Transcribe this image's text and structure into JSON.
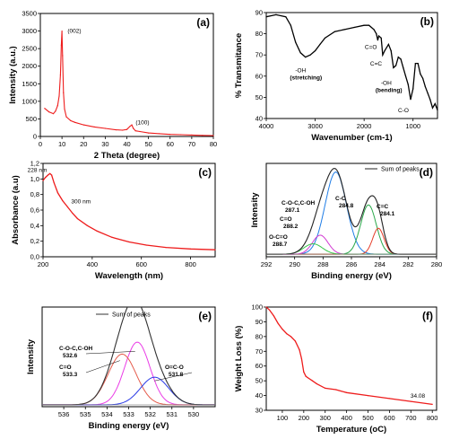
{
  "chart_data": [
    {
      "panel": "(a)",
      "type": "line",
      "xlabel": "2 Theta (degree)",
      "ylabel": "Intensity (a.u.)",
      "xlim": [
        0,
        80
      ],
      "ylim": [
        0,
        3500
      ],
      "xticks": [
        0,
        10,
        20,
        30,
        40,
        50,
        60,
        70,
        80
      ],
      "yticks": [
        0,
        500,
        1000,
        1500,
        2000,
        2500,
        3000,
        3500
      ],
      "color": "#ee1c1c",
      "annotations": [
        {
          "text": "(002)",
          "x": 10.5,
          "y": 3000
        },
        {
          "text": "(100)",
          "x": 42,
          "y": 400
        }
      ],
      "series": [
        {
          "x": [
            2,
            4,
            6,
            7,
            8,
            8.7,
            9.3,
            9.7,
            10,
            10.3,
            10.7,
            11.2,
            12,
            14,
            16,
            20,
            25,
            30,
            35,
            38,
            40,
            41.5,
            42.3,
            43,
            44,
            46,
            50,
            55,
            60,
            65,
            70,
            75,
            80
          ],
          "y": [
            800,
            700,
            650,
            720,
            880,
            1150,
            1750,
            2600,
            3000,
            2300,
            1250,
            780,
            560,
            450,
            400,
            330,
            270,
            230,
            190,
            180,
            200,
            290,
            330,
            230,
            160,
            140,
            100,
            80,
            60,
            50,
            40,
            30,
            25
          ]
        }
      ]
    },
    {
      "panel": "(b)",
      "type": "line",
      "xlabel": "Wavenumber (cm-1)",
      "ylabel": "% Transmitance",
      "xlim": [
        4000,
        500
      ],
      "ylim": [
        40,
        90
      ],
      "xticks": [
        4000,
        3000,
        2000,
        1000
      ],
      "yticks": [
        40,
        50,
        60,
        70,
        80,
        90
      ],
      "color": "#000000",
      "annotations": [
        {
          "text": "-OH",
          "sub": "(stretching)",
          "x": 3150,
          "y": 67
        },
        {
          "text": "C=O",
          "x": 1730,
          "y": 78
        },
        {
          "text": "C=C",
          "x": 1620,
          "y": 70
        },
        {
          "text": "-OH",
          "sub": "(bending)",
          "x": 1400,
          "y": 61
        },
        {
          "text": "C-O",
          "x": 1050,
          "y": 48
        }
      ],
      "series": [
        {
          "x": [
            4000,
            3800,
            3600,
            3500,
            3400,
            3300,
            3200,
            3100,
            3000,
            2900,
            2800,
            2600,
            2400,
            2200,
            2000,
            1900,
            1800,
            1750,
            1720,
            1700,
            1650,
            1620,
            1580,
            1500,
            1450,
            1400,
            1350,
            1300,
            1250,
            1200,
            1150,
            1100,
            1050,
            1000,
            950,
            900,
            850,
            800,
            750,
            700,
            650,
            600,
            550,
            500
          ],
          "y": [
            88,
            89,
            88,
            84,
            76,
            71,
            69,
            70,
            72,
            75,
            78,
            81,
            82,
            83,
            84,
            84,
            82,
            80,
            77,
            79,
            78,
            70,
            72,
            75,
            72,
            64,
            65,
            69,
            68,
            64,
            60,
            56,
            49,
            54,
            66,
            66,
            61,
            59,
            55,
            52,
            49,
            45,
            47,
            44
          ]
        }
      ]
    },
    {
      "panel": "(c)",
      "type": "line",
      "xlabel": "Wavelength (nm)",
      "ylabel": "Absorbance (a.u)",
      "xlim": [
        200,
        900
      ],
      "ylim": [
        0.0,
        1.2
      ],
      "xticks": [
        200,
        400,
        600,
        800
      ],
      "yticks": [
        0.0,
        0.2,
        0.4,
        0.6,
        0.8,
        1.0,
        1.2
      ],
      "color": "#ee1c1c",
      "annotations": [
        {
          "text": "228 nm",
          "x": 228,
          "y": 1.07
        },
        {
          "text": "300 nm",
          "x": 300,
          "y": 0.64
        }
      ],
      "series": [
        {
          "x": [
            200,
            210,
            220,
            228,
            235,
            245,
            260,
            280,
            300,
            320,
            340,
            380,
            420,
            480,
            550,
            620,
            700,
            800,
            900
          ],
          "y": [
            0.98,
            1.02,
            1.05,
            1.07,
            1.05,
            0.95,
            0.82,
            0.72,
            0.64,
            0.56,
            0.49,
            0.4,
            0.33,
            0.25,
            0.19,
            0.15,
            0.12,
            0.1,
            0.09
          ]
        }
      ]
    },
    {
      "panel": "(d)",
      "type": "line",
      "xlabel": "Binding energy (eV)",
      "ylabel": "Intensity",
      "xlim": [
        292,
        280
      ],
      "xticks": [
        292,
        290,
        288,
        286,
        284,
        282,
        280
      ],
      "legend": [
        "Sum of peaks"
      ],
      "legend_position": "top-right",
      "labels": [
        {
          "name": "C-O-C,C-OH",
          "value": "287.1"
        },
        {
          "name": "C-C",
          "value": "284.8"
        },
        {
          "name": "C=C",
          "value": "284.1"
        },
        {
          "name": "C=O",
          "value": "288.2"
        },
        {
          "name": "O-C=O",
          "value": "288.7"
        }
      ],
      "peaks": [
        {
          "center": 287.1,
          "height": 0.95,
          "width": 0.75,
          "color": "#1f7de6"
        },
        {
          "center": 284.8,
          "height": 0.57,
          "width": 0.55,
          "color": "#2aa84a"
        },
        {
          "center": 284.1,
          "height": 0.3,
          "width": 0.4,
          "color": "#e53a26"
        },
        {
          "center": 288.2,
          "height": 0.22,
          "width": 0.55,
          "color": "#d23ad2"
        },
        {
          "center": 288.7,
          "height": 0.12,
          "width": 0.65,
          "color": "#36c648"
        }
      ],
      "baseline": 0.03,
      "sum_color": "#222222"
    },
    {
      "panel": "(e)",
      "type": "line",
      "xlabel": "Binding energy (eV)",
      "ylabel": "Intensity",
      "xlim": [
        537,
        529
      ],
      "xticks": [
        536,
        535,
        534,
        533,
        532,
        531,
        530
      ],
      "legend": [
        "Sum of peaks"
      ],
      "legend_position": "top-right",
      "labels": [
        {
          "name": "C-O-C,C-OH",
          "value": "532.6"
        },
        {
          "name": "C=O",
          "value": "533.3"
        },
        {
          "name": "O=C-O",
          "value": "531.8"
        }
      ],
      "peaks": [
        {
          "center": 532.6,
          "height": 0.68,
          "width": 0.58,
          "color": "#ea3ce6"
        },
        {
          "center": 533.3,
          "height": 0.55,
          "width": 0.65,
          "color": "#e55a4a"
        },
        {
          "center": 531.8,
          "height": 0.3,
          "width": 0.65,
          "color": "#2a3ae6"
        }
      ],
      "baseline": 0.02,
      "sum_color": "#333333"
    },
    {
      "panel": "(f)",
      "type": "line",
      "xlabel": "Temperature (oC)",
      "ylabel": "Weight Loss (%)",
      "xlim": [
        25,
        820
      ],
      "ylim": [
        30,
        100
      ],
      "xticks": [
        100,
        200,
        300,
        400,
        500,
        600,
        700,
        800
      ],
      "yticks": [
        30,
        40,
        50,
        60,
        70,
        80,
        90,
        100
      ],
      "color": "#ee1c1c",
      "annotations": [
        {
          "text": "34.08",
          "x": 740,
          "y": 36
        }
      ],
      "series": [
        {
          "x": [
            25,
            40,
            60,
            80,
            100,
            120,
            140,
            160,
            180,
            190,
            200,
            210,
            220,
            240,
            260,
            300,
            350,
            400,
            500,
            600,
            700,
            800
          ],
          "y": [
            100,
            98,
            94,
            89,
            85,
            82,
            80,
            77,
            71,
            65,
            56,
            53,
            52,
            50,
            48,
            45,
            44,
            42,
            40,
            38,
            36,
            34
          ]
        }
      ]
    }
  ]
}
